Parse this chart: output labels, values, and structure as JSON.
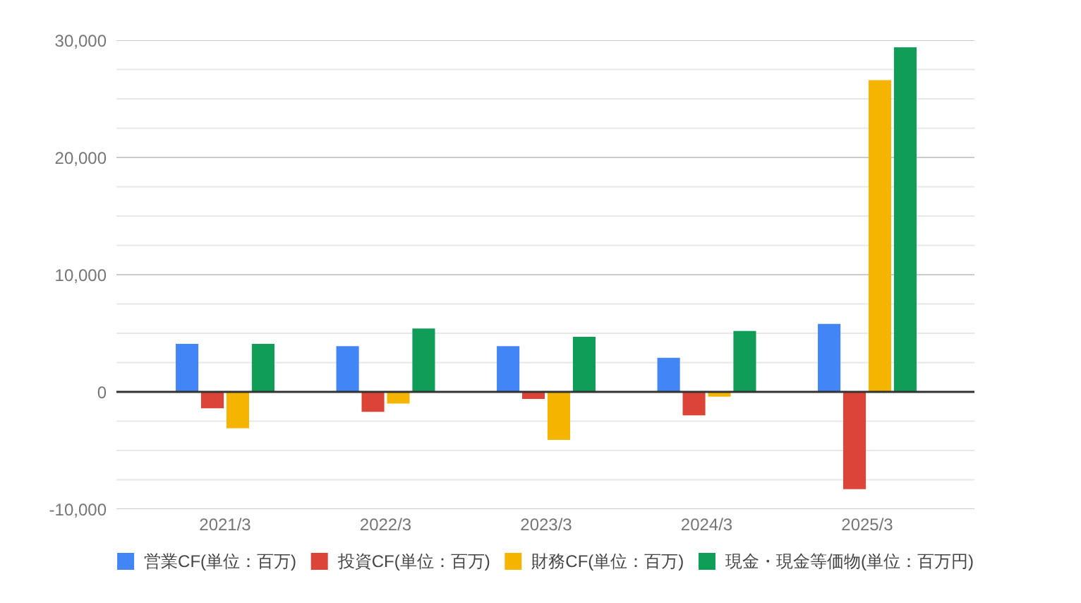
{
  "chart_data": {
    "type": "bar",
    "categories": [
      "2021/3",
      "2022/3",
      "2023/3",
      "2024/3",
      "2025/3"
    ],
    "series": [
      {
        "name": "営業CF(単位：百万)",
        "color": "#4285f4",
        "values": [
          4100,
          3900,
          3900,
          2900,
          5800
        ]
      },
      {
        "name": "投資CF(単位：百万)",
        "color": "#db4437",
        "values": [
          -1400,
          -1700,
          -600,
          -2000,
          -8300
        ]
      },
      {
        "name": "財務CF(単位：百万)",
        "color": "#f4b400",
        "values": [
          -3100,
          -1000,
          -4100,
          -400,
          26600
        ]
      },
      {
        "name": "現金・現金等価物(単位：百万円)",
        "color": "#0f9d58",
        "values": [
          4100,
          5400,
          4700,
          5200,
          29400
        ]
      }
    ],
    "ylim": [
      -10000,
      30000
    ],
    "yticks": [
      {
        "value": -10000,
        "label": "-10,000"
      },
      {
        "value": -7500,
        "label": null
      },
      {
        "value": -5000,
        "label": null
      },
      {
        "value": -2500,
        "label": null
      },
      0,
      {
        "value": 2500,
        "label": null
      },
      {
        "value": 5000,
        "label": null
      },
      {
        "value": 7500,
        "label": null
      },
      {
        "value": 10000,
        "label": "10,000"
      },
      {
        "value": 12500,
        "label": null
      },
      {
        "value": 15000,
        "label": null
      },
      {
        "value": 17500,
        "label": null
      },
      {
        "value": 20000,
        "label": "20,000"
      },
      {
        "value": 22500,
        "label": null
      },
      {
        "value": 25000,
        "label": null
      },
      {
        "value": 27500,
        "label": null
      },
      {
        "value": 30000,
        "label": "30,000"
      }
    ],
    "grid": "y",
    "legend": "bottom",
    "ref_lines": [
      {
        "axis": "y",
        "value": 0,
        "color": "#333333"
      }
    ]
  }
}
